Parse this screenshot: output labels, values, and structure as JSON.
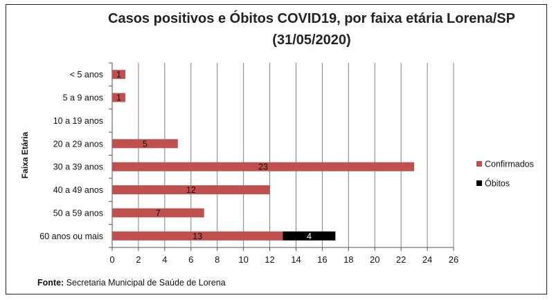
{
  "chart_data": {
    "type": "bar",
    "orientation": "horizontal",
    "stacked": true,
    "title_line1": "Casos positivos e Óbitos COVID19, por faixa etária Lorena/SP",
    "title_line2": "(31/05/2020)",
    "ylabel": "Faixa Etária",
    "xlabel": "",
    "categories": [
      "< 5 anos",
      "5 a 9 anos",
      "10 a 19 anos",
      "20 a 29 anos",
      "30 a 39 anos",
      "40 a 49 anos",
      "50 a 59 anos",
      "60 anos ou mais"
    ],
    "series": [
      {
        "name": "Confirmados",
        "color": "#c0504d",
        "values": [
          1,
          1,
          0,
          5,
          23,
          12,
          7,
          13
        ],
        "labels": [
          "1",
          "1",
          "",
          "5",
          "23",
          "12",
          "7",
          "13"
        ]
      },
      {
        "name": "Óbitos",
        "color": "#000000",
        "values": [
          0,
          0,
          0,
          0,
          0,
          0,
          0,
          4
        ],
        "labels": [
          "",
          "",
          "",
          "",
          "",
          "",
          "",
          "4"
        ]
      }
    ],
    "xlim": [
      0,
      26
    ],
    "xticks": [
      "0",
      "2",
      "4",
      "6",
      "8",
      "10",
      "12",
      "14",
      "16",
      "18",
      "20",
      "22",
      "24",
      "26"
    ],
    "grid": true,
    "legend_position": "right"
  },
  "source": {
    "label": "Fonte:",
    "text": "Secretaria Municipal de Saúde de Lorena"
  }
}
